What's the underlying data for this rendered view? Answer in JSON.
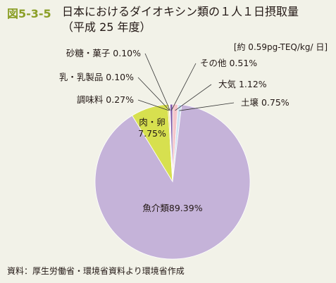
{
  "figure": {
    "number": "図5-3-5",
    "title": "日本におけるダイオキシン類の１人１日摂取量",
    "subtitle": "（平成 25 年度）",
    "unit": "[約 0.59pg-TEQ/kg/ 日]",
    "source": "資料：厚生労働省・環境省資料より環境省作成"
  },
  "chart_data": {
    "type": "pie",
    "title": "日本におけるダイオキシン類の１人１日摂取量",
    "subtitle": "（平成 25 年度）",
    "unit": "[約 0.59pg-TEQ/kg/ 日]",
    "start": "top",
    "direction": "clockwise",
    "slices": [
      {
        "name": "大気",
        "value": 1.12,
        "label": "大気 1.12%",
        "color": "#f5c6cb"
      },
      {
        "name": "土壌",
        "value": 0.75,
        "label": "土壌 0.75%",
        "color": "#cfe3f2"
      },
      {
        "name": "魚介類",
        "value": 89.39,
        "label": "魚介類89.39%",
        "color": "#c5b3d9"
      },
      {
        "name": "肉・卵",
        "value": 7.75,
        "label": "肉・卵\n7.75%",
        "color": "#d7e04f"
      },
      {
        "name": "調味料",
        "value": 0.27,
        "label": "調味料 0.27%",
        "color": "#e8d070"
      },
      {
        "name": "乳・乳製品",
        "value": 0.1,
        "label": "乳・乳製品 0.10%",
        "color": "#6f9fd6"
      },
      {
        "name": "砂糖・菓子",
        "value": 0.1,
        "label": "砂糖・菓子 0.10%",
        "color": "#e6a0c0"
      },
      {
        "name": "その他",
        "value": 0.51,
        "label": "その他 0.51%",
        "color": "#7c5aa6"
      }
    ]
  }
}
